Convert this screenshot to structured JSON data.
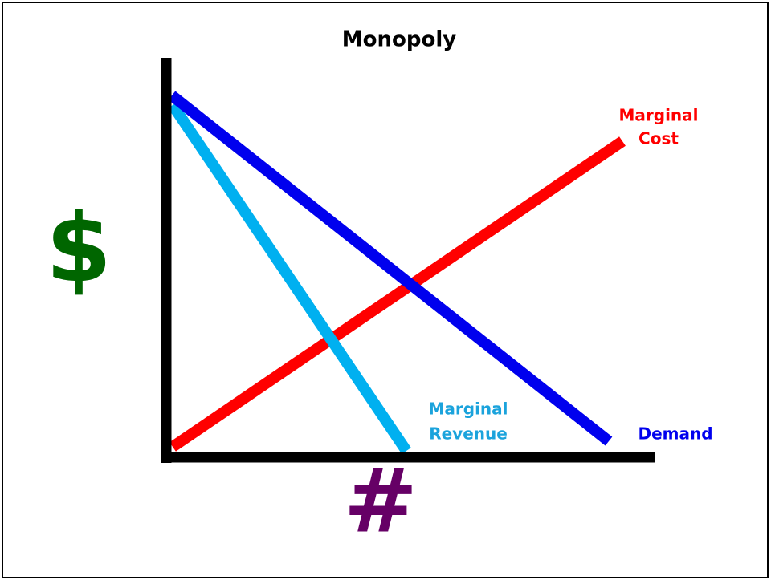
{
  "title": "Monopoly",
  "y_axis_label": "$",
  "x_axis_label": "#",
  "curves": [
    {
      "name_lines": [
        "Marginal",
        "Cost"
      ]
    },
    {
      "name_lines": [
        "Marginal",
        "Revenue"
      ]
    },
    {
      "name_lines": [
        "Demand"
      ]
    }
  ]
}
